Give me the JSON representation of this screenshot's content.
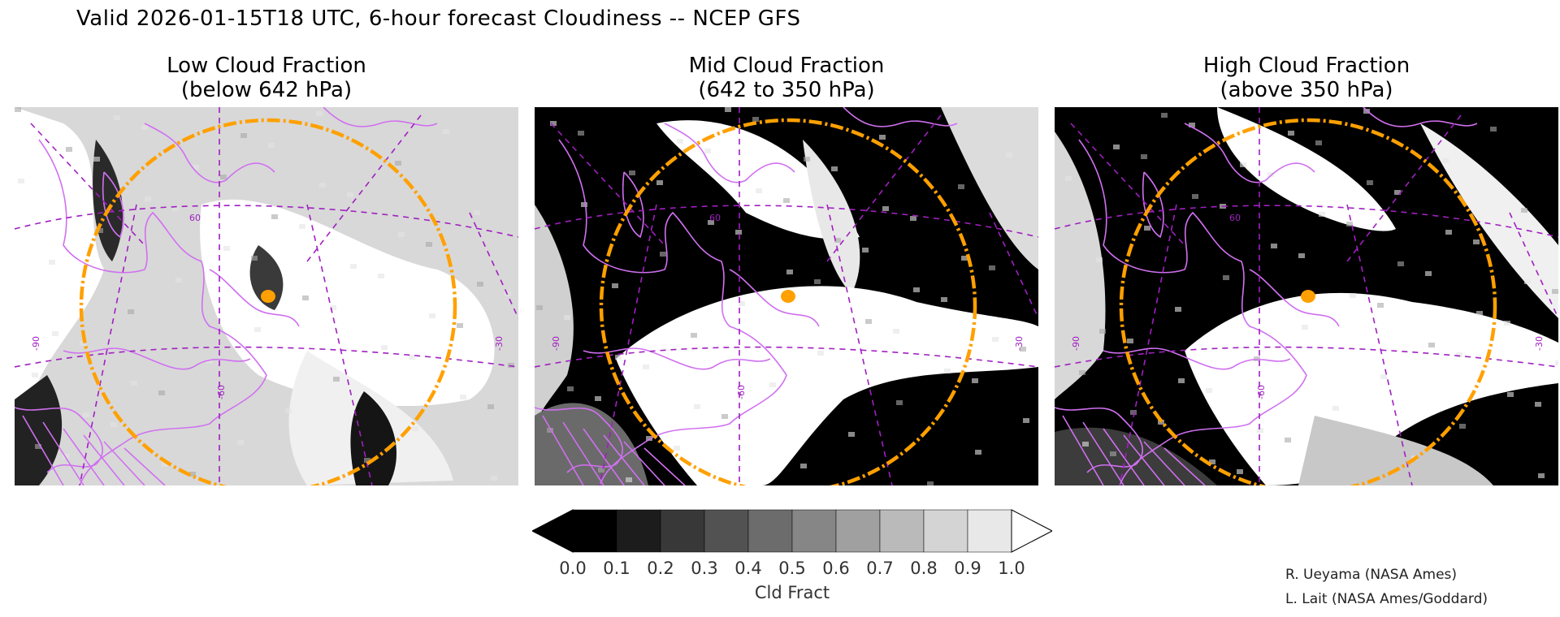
{
  "header": {
    "title": "Valid 2026-01-15T18 UTC, 6-hour forecast Cloudiness -- NCEP GFS"
  },
  "panels": [
    {
      "title": "Low Cloud Fraction",
      "subtitle": "(below 642 hPa)"
    },
    {
      "title": "Mid Cloud Fraction",
      "subtitle": "(642 to 350 hPa)"
    },
    {
      "title": "High Cloud Fraction",
      "subtitle": "(above 350 hPa)"
    }
  ],
  "map_labels": {
    "lon_left": "-90",
    "lon_mid": "-60",
    "lon_right": "-30",
    "lat_mid": "60"
  },
  "colorbar": {
    "title": "Cld Fract",
    "ticks": [
      "0.0",
      "0.1",
      "0.2",
      "0.3",
      "0.4",
      "0.5",
      "0.6",
      "0.7",
      "0.8",
      "0.9",
      "1.0"
    ],
    "colors": [
      "#000000",
      "#1c1c1c",
      "#383838",
      "#525252",
      "#6c6c6c",
      "#868686",
      "#a0a0a0",
      "#bababa",
      "#d4d4d4",
      "#e8e8e8",
      "#ffffff",
      "#ffffff"
    ]
  },
  "credits": {
    "line1": "R. Ueyama (NASA Ames)",
    "line2": "L. Lait (NASA Ames/Goddard)"
  },
  "styling": {
    "coast_color": "#d070f0",
    "grid_color": "#a020c0",
    "ring_color": "#ffa000"
  }
}
